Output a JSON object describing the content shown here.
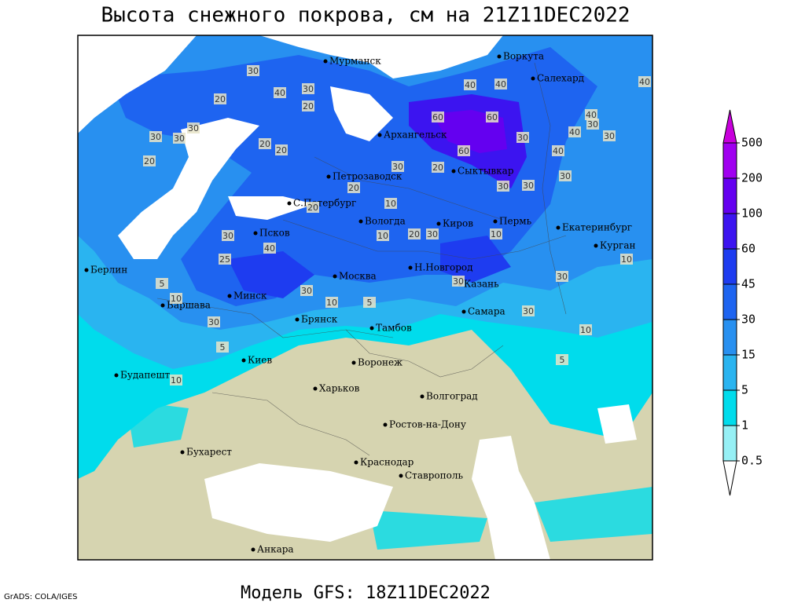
{
  "title": "Высота снежного покрова, см на 21Z11DEC2022",
  "footer": "Модель GFS: 18Z11DEC2022",
  "credit": "GrADS: COLA/IGES",
  "legend": {
    "levels": [
      0.5,
      1,
      5,
      15,
      30,
      45,
      60,
      100,
      200,
      500
    ],
    "colors": [
      "#ffffff",
      "#96f0f5",
      "#00dcec",
      "#2ab4f0",
      "#2890f0",
      "#1e64f0",
      "#1e3cf0",
      "#3c14f0",
      "#6400f0",
      "#a000f0",
      "#c800dc"
    ]
  },
  "cities": [
    "Мурманск",
    "Воркута",
    "Салехард",
    "Архангельск",
    "Сыктывкар",
    "Петрозаводск",
    "С.Петербург",
    "Вологда",
    "Киров",
    "Пермь",
    "Екатеринбург",
    "Курган",
    "Псков",
    "Берлин",
    "Москва",
    "Н.Новгород",
    "Казань",
    "Варшава",
    "Минск",
    "Брянск",
    "Тамбов",
    "Самара",
    "Воронеж",
    "Киев",
    "Будапешт",
    "Харьков",
    "Волгоград",
    "Ростов-на-Дону",
    "Бухарест",
    "Краснодар",
    "Ставрополь",
    "Анкара"
  ],
  "contour_labels": [
    30,
    40,
    20,
    30,
    30,
    30,
    20,
    20,
    20,
    30,
    20,
    40,
    40,
    60,
    60,
    30,
    60,
    40,
    40,
    30,
    30,
    40,
    40,
    30,
    30,
    20,
    30,
    30,
    20,
    20,
    10,
    10,
    20,
    30,
    10,
    30,
    40,
    25,
    10,
    5,
    10,
    30,
    30,
    10,
    5,
    30,
    10,
    5,
    5,
    10,
    30,
    30
  ]
}
